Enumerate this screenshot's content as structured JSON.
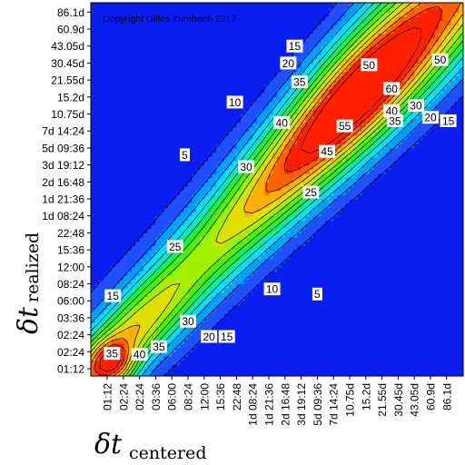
{
  "chart_data": {
    "type": "heatmap",
    "subtype": "contour",
    "copyright": "Copyright Gilles Zumbach 2012",
    "ylabel_main": "δt",
    "ylabel_sub": "realized",
    "xlabel_main": "δt",
    "xlabel_sub": "centered",
    "y_ticks": [
      "01:12",
      "02:24",
      "02:24",
      "03:36",
      "06:00",
      "08:24",
      "12:00",
      "15:36",
      "22:48",
      "1d 08:24",
      "1d 21:36",
      "2d 16:48",
      "3d 19:12",
      "5d 09:36",
      "7d 14:24",
      "10.75d",
      "15.2d",
      "21.55d",
      "30.45d",
      "43.05d",
      "60.9d",
      "86.1d"
    ],
    "x_ticks": [
      "01:12",
      "02:24",
      "02:24",
      "03:36",
      "06:00",
      "08:24",
      "12:00",
      "15:36",
      "22:48",
      "1d 08:24",
      "1d 21:36",
      "2d 16:48",
      "3d 19:12",
      "5d 09:36",
      "7d 14:24",
      "10.75d",
      "15.2d",
      "21.55d",
      "30.45d",
      "43.05d",
      "60.9d",
      "86.1d"
    ],
    "contour_levels": [
      5,
      10,
      15,
      20,
      25,
      30,
      35,
      40,
      45,
      50,
      55,
      60
    ],
    "colorscale": [
      "#0a1ef0",
      "#1e50ff",
      "#00a0ff",
      "#00e0ff",
      "#00f0b0",
      "#20f040",
      "#50f000",
      "#a0f000",
      "#e0e000",
      "#ffb000",
      "#ff6000",
      "#ff2000"
    ],
    "contour_labels": [
      {
        "text": "5",
        "x": 4.8,
        "y": 12.6
      },
      {
        "text": "10",
        "x": 7.9,
        "y": 15.7
      },
      {
        "text": "15",
        "x": 11.6,
        "y": 19.0
      },
      {
        "text": "20",
        "x": 11.2,
        "y": 18.0
      },
      {
        "text": "35",
        "x": 11.9,
        "y": 16.9
      },
      {
        "text": "40",
        "x": 10.8,
        "y": 14.5
      },
      {
        "text": "50",
        "x": 16.2,
        "y": 17.9
      },
      {
        "text": "60",
        "x": 17.6,
        "y": 16.5
      },
      {
        "text": "55",
        "x": 14.7,
        "y": 14.3
      },
      {
        "text": "45",
        "x": 13.6,
        "y": 12.8
      },
      {
        "text": "30",
        "x": 8.6,
        "y": 11.9
      },
      {
        "text": "25",
        "x": 12.6,
        "y": 10.4
      },
      {
        "text": "40",
        "x": 17.6,
        "y": 15.2
      },
      {
        "text": "35",
        "x": 17.8,
        "y": 14.6
      },
      {
        "text": "30",
        "x": 19.1,
        "y": 15.5
      },
      {
        "text": "20",
        "x": 20.0,
        "y": 14.8
      },
      {
        "text": "15",
        "x": 21.1,
        "y": 14.6
      },
      {
        "text": "50",
        "x": 20.6,
        "y": 18.2
      },
      {
        "text": "25",
        "x": 4.2,
        "y": 7.2
      },
      {
        "text": "15",
        "x": 0.35,
        "y": 4.3
      },
      {
        "text": "35",
        "x": 0.3,
        "y": 0.9
      },
      {
        "text": "40",
        "x": 2.0,
        "y": 0.85
      },
      {
        "text": "35",
        "x": 3.2,
        "y": 1.3
      },
      {
        "text": "30",
        "x": 5.0,
        "y": 2.8
      },
      {
        "text": "20",
        "x": 6.3,
        "y": 1.9
      },
      {
        "text": "15",
        "x": 7.4,
        "y": 1.9
      },
      {
        "text": "10",
        "x": 10.2,
        "y": 4.7
      },
      {
        "text": "5",
        "x": 13.0,
        "y": 4.4
      }
    ]
  }
}
